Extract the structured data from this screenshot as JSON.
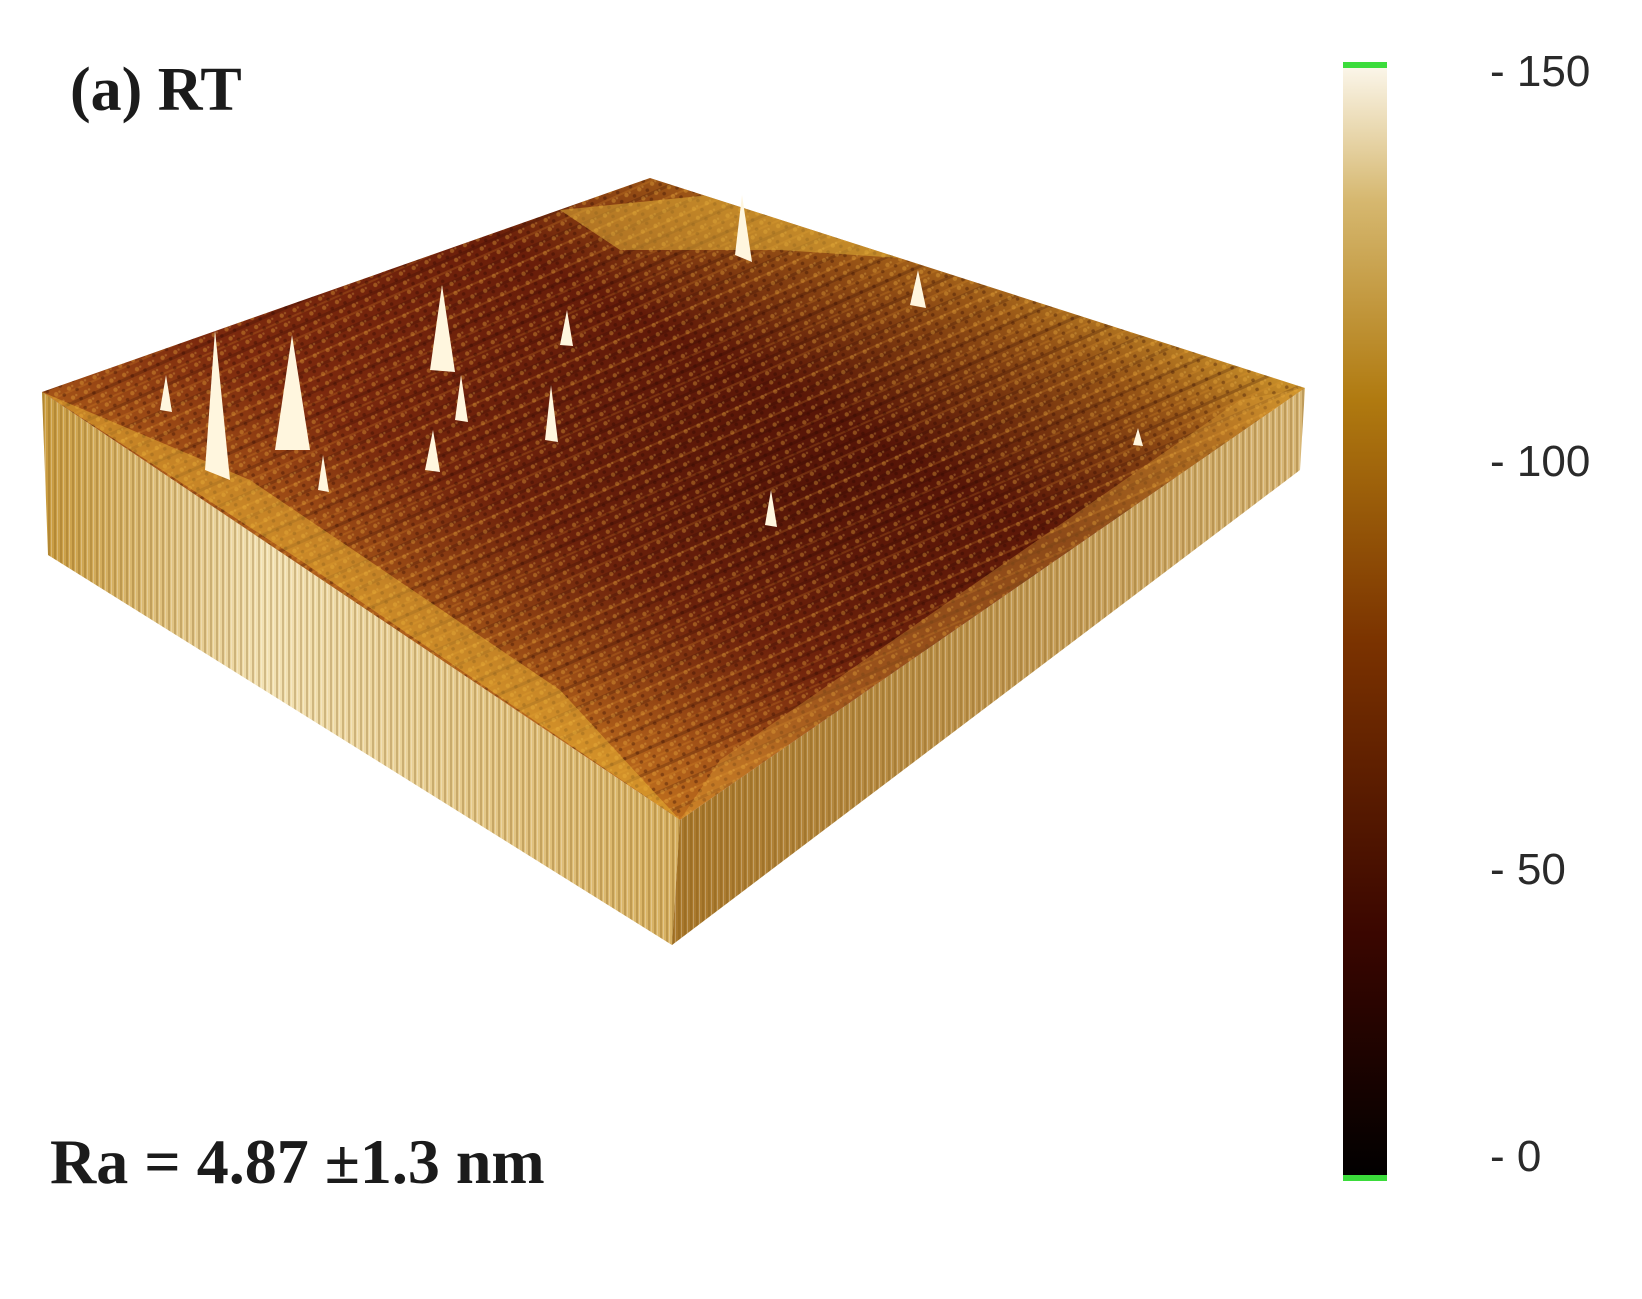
{
  "figure": {
    "panel_label": "(a) RT",
    "roughness_label": "Ra = 4.87 ±1.3 nm",
    "subject": "3D AFM surface topography",
    "colorbar": {
      "ticks": [
        {
          "value": 150,
          "label": "- 150"
        },
        {
          "value": 100,
          "label": "- 100"
        },
        {
          "value": 50,
          "label": "- 50"
        },
        {
          "value": 0,
          "label": "- 0"
        }
      ],
      "range": [
        0,
        150
      ],
      "colors": [
        "#000000",
        "#3a0600",
        "#7a3200",
        "#b07a10",
        "#d6b870",
        "#fbf6ea"
      ],
      "end_marker_color": "#3bdc3b"
    }
  }
}
